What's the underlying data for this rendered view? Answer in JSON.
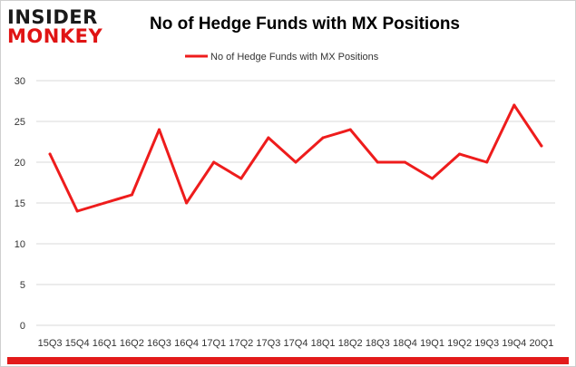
{
  "logo": {
    "top": "INSIDER",
    "bottom": "MONKEY"
  },
  "chart_data": {
    "type": "line",
    "title": "No of Hedge Funds with MX Positions",
    "legend": {
      "position": "top",
      "entries": [
        "No of Hedge Funds with MX Positions"
      ]
    },
    "xlabel": "",
    "ylabel": "",
    "categories": [
      "15Q3",
      "15Q4",
      "16Q1",
      "16Q2",
      "16Q3",
      "16Q4",
      "17Q1",
      "17Q2",
      "17Q3",
      "17Q4",
      "18Q1",
      "18Q2",
      "18Q3",
      "18Q4",
      "19Q1",
      "19Q2",
      "19Q3",
      "19Q4",
      "20Q1"
    ],
    "series": [
      {
        "name": "No of Hedge Funds with MX Positions",
        "color": "#ee1c1c",
        "values": [
          21,
          14,
          15,
          16,
          24,
          15,
          20,
          18,
          23,
          20,
          23,
          24,
          20,
          20,
          18,
          21,
          20,
          27,
          22
        ]
      }
    ],
    "ylim": [
      0,
      30
    ],
    "yticks": [
      0,
      5,
      10,
      15,
      20,
      25,
      30
    ],
    "grid": true
  }
}
